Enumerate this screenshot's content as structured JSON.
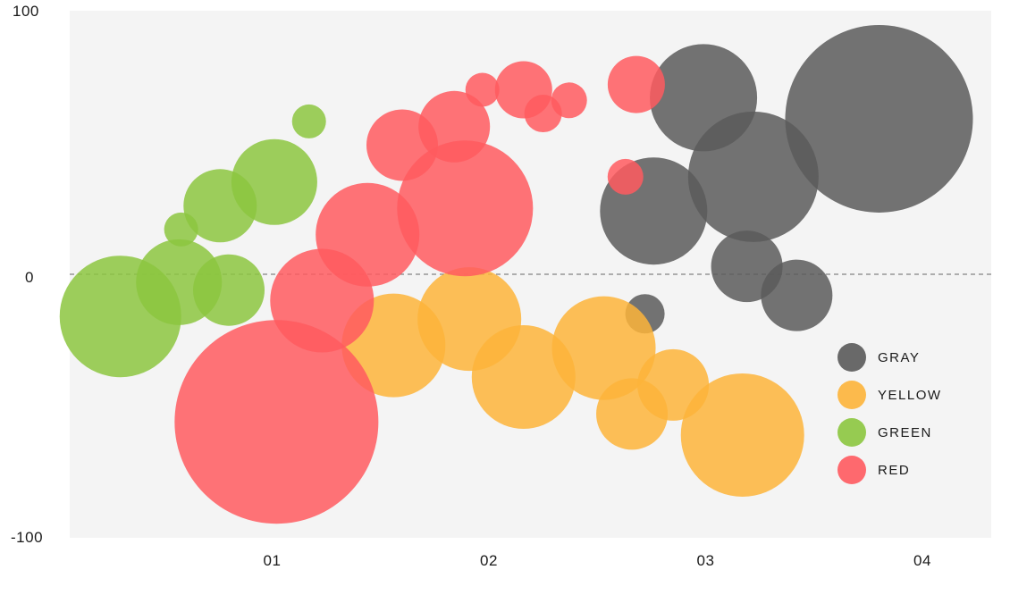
{
  "chart_data": {
    "type": "scatter",
    "title": "",
    "xlabel": "",
    "ylabel": "",
    "xlim": [
      0,
      4.3
    ],
    "ylim": [
      -100,
      100
    ],
    "x_ticks": [
      "01",
      "02",
      "03",
      "04"
    ],
    "x_tick_values": [
      1,
      2,
      3,
      4
    ],
    "y_ticks": [
      "100",
      "0",
      "-100"
    ],
    "y_tick_values": [
      100,
      0,
      -100
    ],
    "zero_line": "dashed",
    "grid": false,
    "legend_position": "bottom-right",
    "colors": {
      "background": "#f4f4f4",
      "gray": "#5a5a5a",
      "yellow": "#fdb43a",
      "green": "#8cc63f",
      "red": "#ff5a5f"
    },
    "series": [
      {
        "name": "GRAY",
        "color": "#5a5a5a",
        "points": [
          {
            "x": 3.8,
            "y": 59,
            "r": 105
          },
          {
            "x": 2.99,
            "y": 67,
            "r": 60
          },
          {
            "x": 3.22,
            "y": 37,
            "r": 73
          },
          {
            "x": 2.76,
            "y": 24,
            "r": 60
          },
          {
            "x": 3.19,
            "y": 3,
            "r": 40
          },
          {
            "x": 3.42,
            "y": -8,
            "r": 40
          },
          {
            "x": 2.72,
            "y": -15,
            "r": 22
          }
        ]
      },
      {
        "name": "YELLOW",
        "color": "#fdb43a",
        "points": [
          {
            "x": 1.56,
            "y": -27,
            "r": 58
          },
          {
            "x": 1.91,
            "y": -17,
            "r": 58
          },
          {
            "x": 2.16,
            "y": -39,
            "r": 58
          },
          {
            "x": 2.53,
            "y": -28,
            "r": 58
          },
          {
            "x": 2.66,
            "y": -53,
            "r": 40
          },
          {
            "x": 2.85,
            "y": -42,
            "r": 40
          },
          {
            "x": 3.17,
            "y": -61,
            "r": 69
          }
        ]
      },
      {
        "name": "GREEN",
        "color": "#8cc63f",
        "points": [
          {
            "x": 0.3,
            "y": -16,
            "r": 68
          },
          {
            "x": 0.57,
            "y": -3,
            "r": 48
          },
          {
            "x": 0.8,
            "y": -6,
            "r": 40
          },
          {
            "x": 0.58,
            "y": 17,
            "r": 19
          },
          {
            "x": 0.76,
            "y": 26,
            "r": 41
          },
          {
            "x": 1.01,
            "y": 35,
            "r": 48
          },
          {
            "x": 1.17,
            "y": 58,
            "r": 19
          }
        ]
      },
      {
        "name": "RED",
        "color": "#ff5a5f",
        "points": [
          {
            "x": 1.02,
            "y": -56,
            "r": 114
          },
          {
            "x": 1.23,
            "y": -10,
            "r": 58
          },
          {
            "x": 1.44,
            "y": 15,
            "r": 58
          },
          {
            "x": 1.89,
            "y": 25,
            "r": 76
          },
          {
            "x": 1.6,
            "y": 49,
            "r": 40
          },
          {
            "x": 1.84,
            "y": 56,
            "r": 40
          },
          {
            "x": 1.97,
            "y": 70,
            "r": 19
          },
          {
            "x": 2.16,
            "y": 70,
            "r": 32
          },
          {
            "x": 2.25,
            "y": 61,
            "r": 21
          },
          {
            "x": 2.37,
            "y": 66,
            "r": 20
          },
          {
            "x": 2.68,
            "y": 72,
            "r": 32
          },
          {
            "x": 2.63,
            "y": 37,
            "r": 20
          }
        ]
      }
    ],
    "legend": [
      "GRAY",
      "YELLOW",
      "GREEN",
      "RED"
    ]
  }
}
